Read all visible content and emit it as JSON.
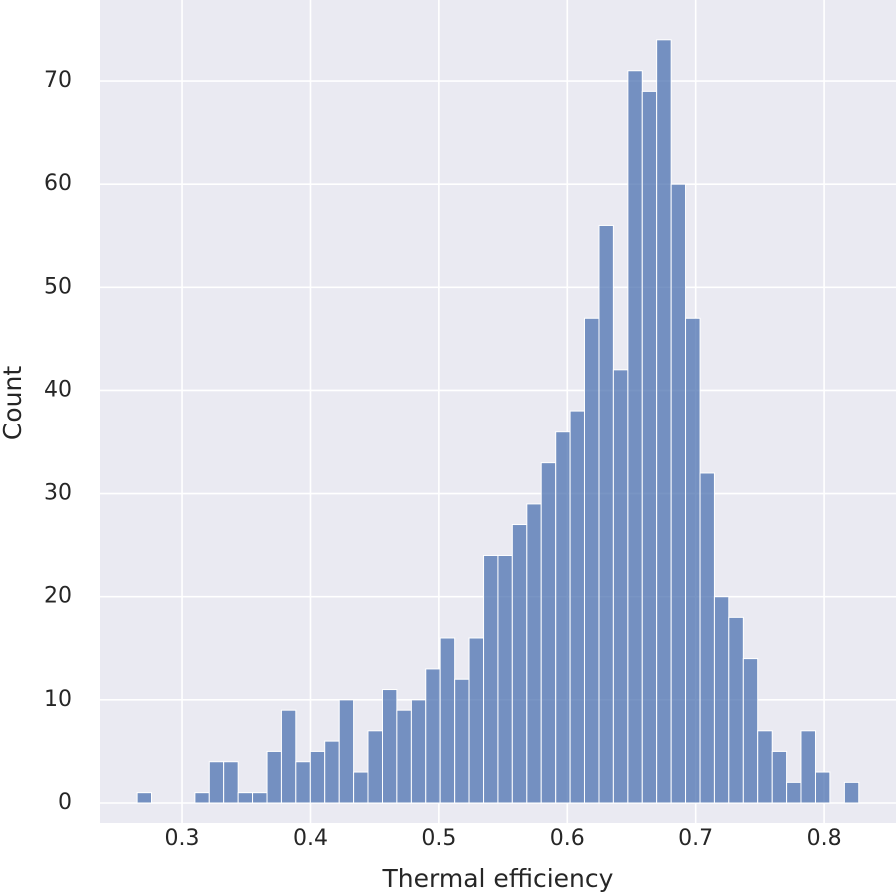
{
  "chart_data": {
    "type": "histogram",
    "xlabel": "Thermal efficiency",
    "ylabel": "Count",
    "bins": [
      0.265,
      0.2762,
      0.2875,
      0.2987,
      0.31,
      0.3212,
      0.3324,
      0.3437,
      0.3549,
      0.3662,
      0.3774,
      0.3886,
      0.3999,
      0.4111,
      0.4224,
      0.4336,
      0.4448,
      0.4561,
      0.4673,
      0.4786,
      0.4898,
      0.501,
      0.5123,
      0.5235,
      0.5348,
      0.546,
      0.5572,
      0.5685,
      0.5797,
      0.591,
      0.6022,
      0.6134,
      0.6247,
      0.6359,
      0.6472,
      0.6584,
      0.6696,
      0.6809,
      0.6921,
      0.7034,
      0.7146,
      0.7258,
      0.7371,
      0.7483,
      0.7596,
      0.7708,
      0.782,
      0.7933,
      0.8045,
      0.8158,
      0.827
    ],
    "values": [
      1,
      0,
      0,
      0,
      1,
      4,
      4,
      1,
      1,
      5,
      9,
      4,
      5,
      6,
      10,
      3,
      7,
      11,
      9,
      10,
      13,
      16,
      12,
      16,
      24,
      24,
      27,
      29,
      33,
      36,
      38,
      47,
      56,
      42,
      71,
      69,
      74,
      60,
      47,
      32,
      20,
      18,
      14,
      7,
      5,
      2,
      7,
      3,
      0,
      2
    ],
    "color": "#4c72b0",
    "xlim": [
      0.2361,
      0.856
    ],
    "ylim": [
      -1.94,
      77.86
    ],
    "xticks": [
      0.3,
      0.4,
      0.5,
      0.6,
      0.7,
      0.8
    ],
    "yticks": [
      0,
      10,
      20,
      30,
      40,
      50,
      60,
      70
    ],
    "grid": true
  }
}
